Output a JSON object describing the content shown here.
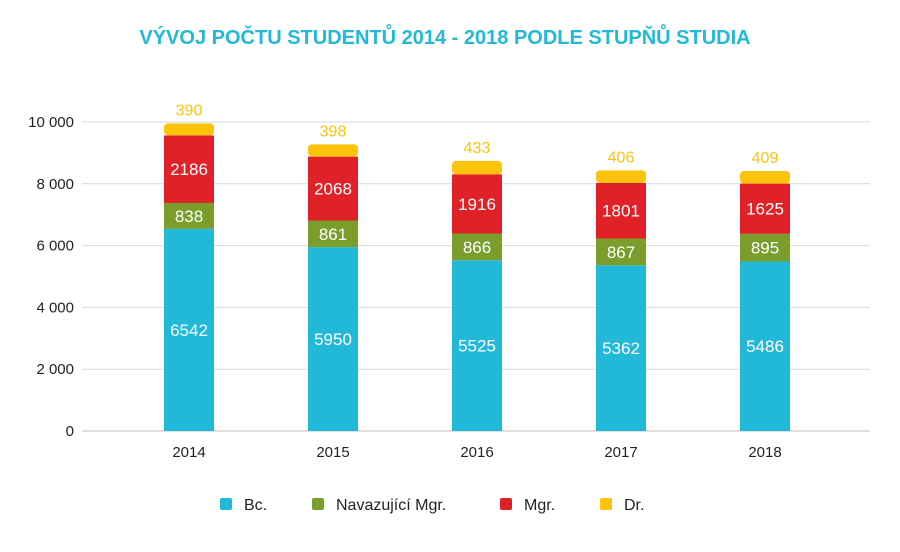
{
  "chart_data": {
    "type": "bar",
    "stacked": true,
    "title": "VÝVOJ POČTU STUDENTŮ 2014 - 2018 PODLE STUPŇŮ STUDIA",
    "categories": [
      "2014",
      "2015",
      "2016",
      "2017",
      "2018"
    ],
    "series": [
      {
        "name": "Bc.",
        "color": "#22b8d8",
        "values": [
          6542,
          5950,
          5525,
          5362,
          5486
        ]
      },
      {
        "name": "Navazující Mgr.",
        "color": "#7a9e2b",
        "values": [
          838,
          861,
          866,
          867,
          895
        ]
      },
      {
        "name": "Mgr.",
        "color": "#e02127",
        "values": [
          2186,
          2068,
          1916,
          1801,
          1625
        ]
      },
      {
        "name": "Dr.",
        "color": "#fcc30b",
        "values": [
          390,
          398,
          433,
          406,
          409
        ]
      }
    ],
    "ylim": [
      0,
      10000
    ],
    "yticks": [
      0,
      2000,
      4000,
      6000,
      8000,
      10000
    ],
    "ytick_labels": [
      "0",
      "2 000",
      "4 000",
      "6 000",
      "8 000",
      "10 000"
    ],
    "grid": true,
    "legend_position": "bottom",
    "title_color": "#22b8d8"
  }
}
